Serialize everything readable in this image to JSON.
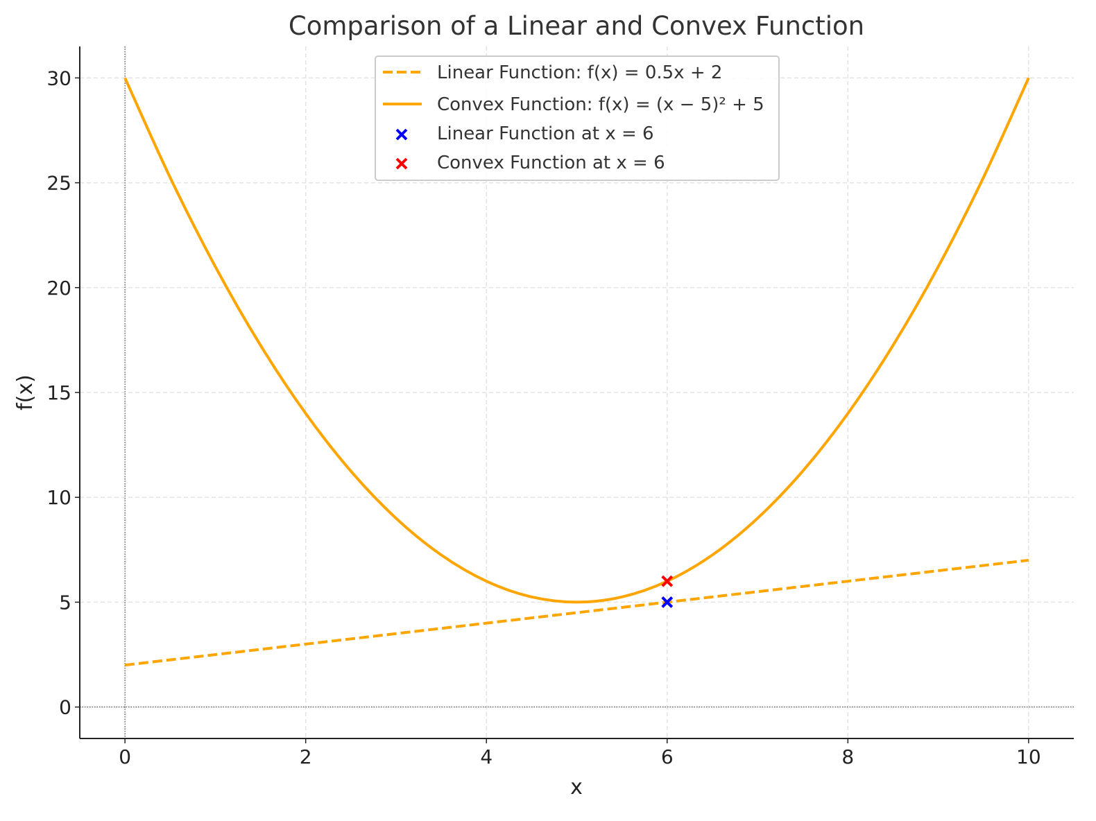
{
  "chart_data": {
    "type": "line",
    "title": "Comparison of a Linear and Convex Function",
    "xlabel": "x",
    "ylabel": "f(x)",
    "xlim": [
      -0.5,
      10.5
    ],
    "ylim": [
      -1.5,
      31.5
    ],
    "xticks": [
      0,
      2,
      4,
      6,
      8,
      10
    ],
    "yticks": [
      0,
      5,
      10,
      15,
      20,
      25,
      30
    ],
    "grid": true,
    "legend_position": "top-center",
    "x": [
      0,
      0.5,
      1,
      1.5,
      2,
      2.5,
      3,
      3.5,
      4,
      4.5,
      5,
      5.5,
      6,
      6.5,
      7,
      7.5,
      8,
      8.5,
      9,
      9.5,
      10
    ],
    "series": [
      {
        "name": "Linear Function: f(x) = 0.5x + 2",
        "style": "dashed",
        "color": "#FFA500",
        "values": [
          2,
          2.25,
          2.5,
          2.75,
          3,
          3.25,
          3.5,
          3.75,
          4,
          4.25,
          4.5,
          4.75,
          5,
          5.25,
          5.5,
          5.75,
          6,
          6.25,
          6.5,
          6.75,
          7
        ]
      },
      {
        "name": "Convex Function: f(x) = (x − 5)² + 5",
        "style": "solid",
        "color": "#FFA500",
        "values": [
          30,
          25.25,
          21,
          17.25,
          14,
          11.25,
          9,
          7.25,
          6,
          5.25,
          5,
          5.25,
          6,
          7.25,
          9,
          11.25,
          14,
          17.25,
          21,
          25.25,
          30
        ]
      }
    ],
    "points": [
      {
        "name": "Linear Function at x = 6",
        "x": 6,
        "y": 5,
        "marker": "x",
        "color": "#0000FF"
      },
      {
        "name": "Convex Function at x = 6",
        "x": 6,
        "y": 6,
        "marker": "x",
        "color": "#FF0000"
      }
    ]
  }
}
